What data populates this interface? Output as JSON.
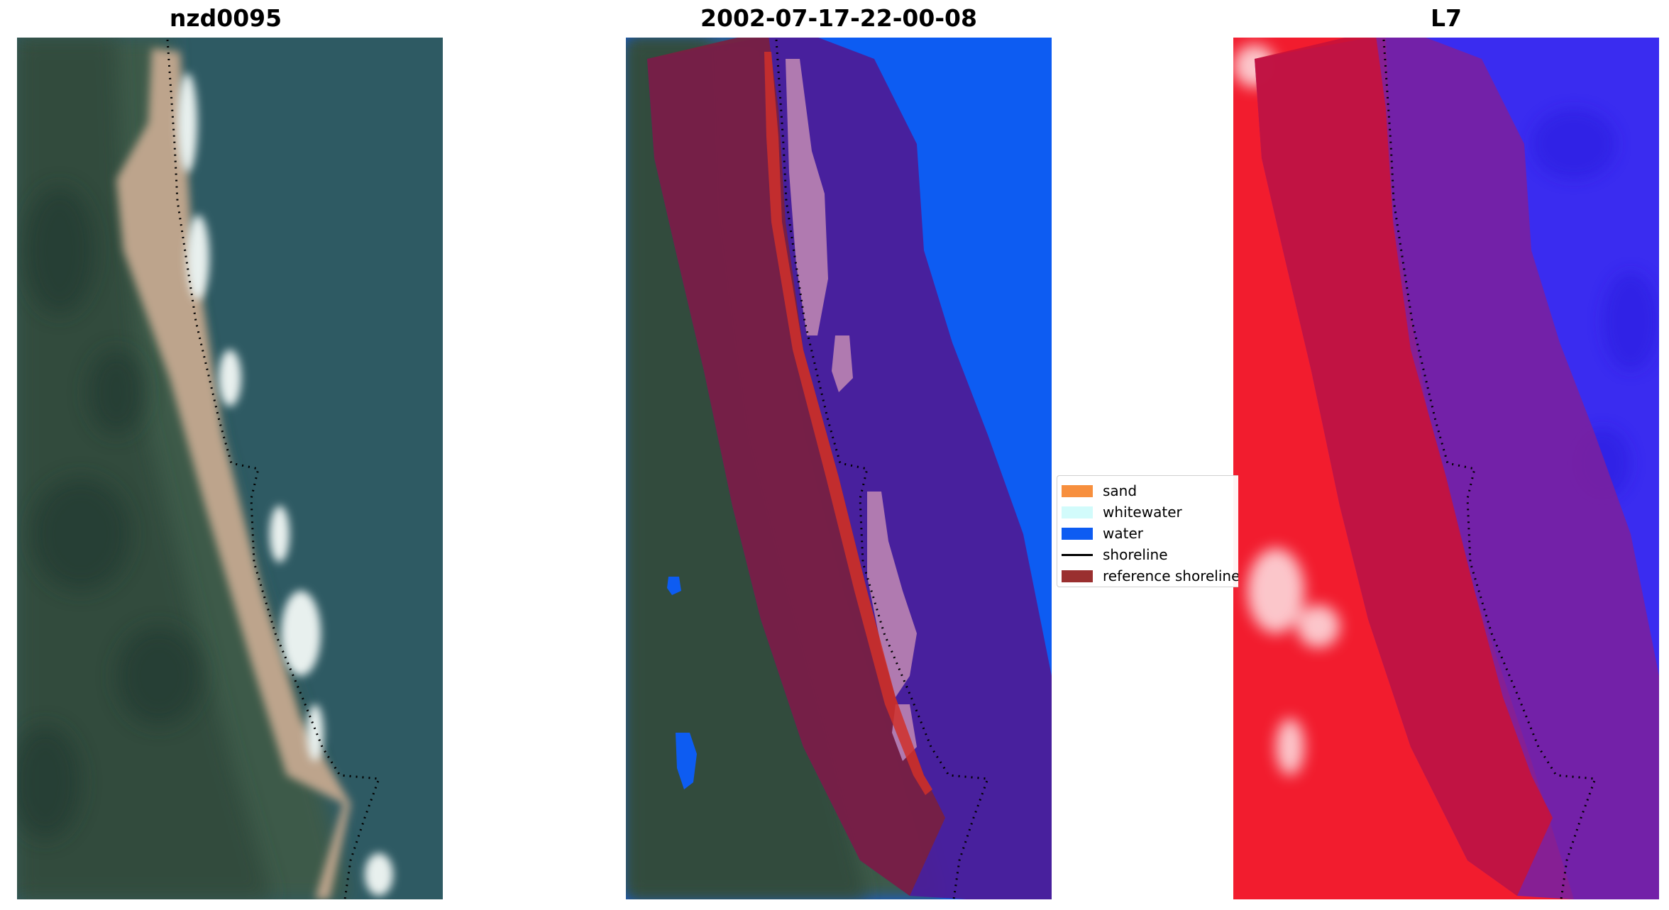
{
  "panels": [
    {
      "title": "nzd0095"
    },
    {
      "title": "2002-07-17-22-00-08"
    },
    {
      "title": "L7"
    }
  ],
  "legend": {
    "items": [
      {
        "label": "sand",
        "color": "#f78f3e",
        "kind": "patch"
      },
      {
        "label": "whitewater",
        "color": "#d2fbfb",
        "kind": "patch"
      },
      {
        "label": "water",
        "color": "#0d5cf2",
        "kind": "patch"
      },
      {
        "label": "shoreline",
        "color": "#000000",
        "kind": "line"
      },
      {
        "label": "reference shoreline",
        "color": "#9a2f2f",
        "kind": "patch"
      }
    ]
  },
  "colors": {
    "ocean": "#2e5a63",
    "vegetation": "#3c5a48",
    "beach": "#bda48c",
    "buffer_land": "#7a2040",
    "buffer_water": "#4a1e9a",
    "water_class": "#0d5cf2",
    "ndwi_land": "#f21c2e",
    "ndwi_water": "#3a2cf0"
  }
}
